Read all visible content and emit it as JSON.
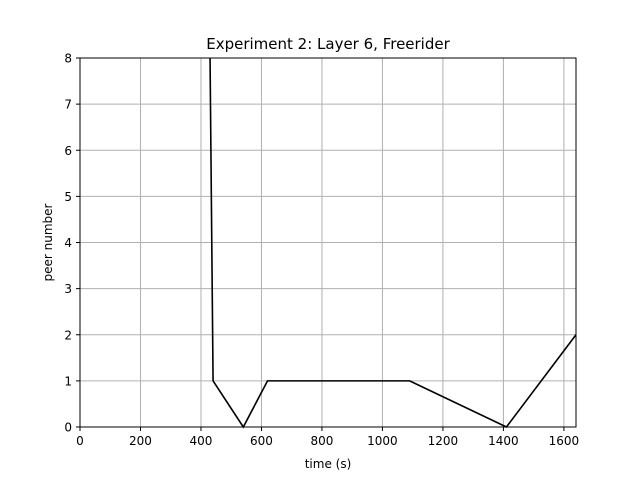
{
  "chart_data": {
    "type": "line",
    "title": "Experiment 2: Layer 6, Freerider",
    "xlabel": "time (s)",
    "ylabel": "peer number",
    "xlim": [
      0,
      1640
    ],
    "ylim": [
      0,
      8
    ],
    "xticks": [
      0,
      200,
      400,
      600,
      800,
      1000,
      1200,
      1400,
      1600
    ],
    "yticks": [
      0,
      1,
      2,
      3,
      4,
      5,
      6,
      7,
      8
    ],
    "grid": true,
    "series": [
      {
        "color": "#000000",
        "points": [
          {
            "x": 430,
            "y": 8
          },
          {
            "x": 440,
            "y": 1
          },
          {
            "x": 540,
            "y": 0
          },
          {
            "x": 620,
            "y": 1
          },
          {
            "x": 1090,
            "y": 1
          },
          {
            "x": 1410,
            "y": 0
          },
          {
            "x": 1640,
            "y": 2
          }
        ]
      }
    ]
  }
}
